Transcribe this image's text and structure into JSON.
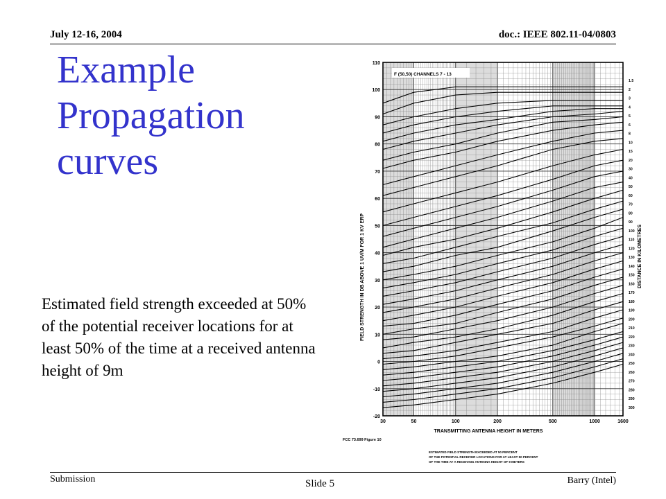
{
  "header": {
    "date": "July 12-16, 2004",
    "doc_id": "doc.: IEEE 802.11-04/0803"
  },
  "title": {
    "lines": [
      "Example",
      "Propagation",
      "curves"
    ],
    "color": "#3333cc"
  },
  "body": {
    "text": "Estimated field strength exceeded at 50% of the potential receiver locations for at least 50% of the time at a received antenna height of 9m"
  },
  "footer": {
    "left": "Submission",
    "center": "Slide 5",
    "right": "Barry (Intel)"
  },
  "figure": {
    "inset_label": "F (50,50) CHANNELS 7 - 13",
    "source_label": "FCC  73.699 Figure 10",
    "caption_lines": [
      "ESTIMATED FIELD STRENGTH EXCEEDED AT 50 PERCENT",
      "OF THE POTENTIAL RECEIVER LOCATIONS FOR AT LEAST 50 PERCENT",
      "OF THE TIME AT A RECEIVING ANTENNA HEIGHT OF 9 METERS"
    ]
  },
  "chart_data": {
    "type": "line",
    "title": "F (50,50) CHANNELS 7 - 13",
    "xlabel": "TRANSMITTING ANTENNA HEIGHT IN METERS",
    "ylabel": "FIELD STRENGTH IN DB ABOVE 1 UV/M FOR 1 KV ERP",
    "y2label": "DISTANCE IN KILOMETRES",
    "x_scale": "log",
    "xlim": [
      30,
      1600
    ],
    "ylim": [
      -20,
      110
    ],
    "x_ticks": [
      30,
      50,
      100,
      200,
      500,
      1000,
      1600
    ],
    "y_ticks": [
      110,
      100,
      90,
      80,
      70,
      60,
      50,
      40,
      30,
      20,
      10,
      0,
      -10,
      -20
    ],
    "grid": true,
    "distance_labels": [
      "1.5",
      "2",
      "3",
      "4",
      "5",
      "6",
      "8",
      "10",
      "15",
      "20",
      "30",
      "40",
      "50",
      "60",
      "70",
      "80",
      "90",
      "100",
      "110",
      "120",
      "130",
      "140",
      "150",
      "160",
      "170",
      "180",
      "190",
      "200",
      "210",
      "220",
      "230",
      "240",
      "250",
      "260",
      "270",
      "280",
      "290",
      "300"
    ],
    "series": [
      {
        "name": "1.5",
        "values": [
          [
            30,
            95
          ],
          [
            50,
            99
          ],
          [
            100,
            101
          ],
          [
            200,
            101
          ],
          [
            500,
            101
          ],
          [
            1000,
            101
          ],
          [
            1600,
            101
          ]
        ]
      },
      {
        "name": "2",
        "values": [
          [
            30,
            91
          ],
          [
            50,
            95
          ],
          [
            100,
            98
          ],
          [
            200,
            99
          ],
          [
            500,
            99
          ],
          [
            1000,
            99
          ],
          [
            1600,
            99
          ]
        ]
      },
      {
        "name": "3",
        "values": [
          [
            30,
            87
          ],
          [
            50,
            90
          ],
          [
            100,
            93
          ],
          [
            200,
            95
          ],
          [
            500,
            96
          ],
          [
            1000,
            96
          ],
          [
            1600,
            96
          ]
        ]
      },
      {
        "name": "4",
        "values": [
          [
            30,
            84
          ],
          [
            50,
            87
          ],
          [
            100,
            90
          ],
          [
            200,
            92
          ],
          [
            500,
            94
          ],
          [
            1000,
            94
          ],
          [
            1600,
            94
          ]
        ]
      },
      {
        "name": "5",
        "values": [
          [
            30,
            81
          ],
          [
            50,
            84
          ],
          [
            100,
            87
          ],
          [
            200,
            89
          ],
          [
            500,
            92
          ],
          [
            1000,
            93
          ],
          [
            1600,
            93
          ]
        ]
      },
      {
        "name": "6",
        "values": [
          [
            30,
            78
          ],
          [
            50,
            81
          ],
          [
            100,
            84
          ],
          [
            200,
            87
          ],
          [
            500,
            90
          ],
          [
            1000,
            91
          ],
          [
            1600,
            92
          ]
        ]
      },
      {
        "name": "8",
        "values": [
          [
            30,
            74
          ],
          [
            50,
            77
          ],
          [
            100,
            80
          ],
          [
            200,
            84
          ],
          [
            500,
            88
          ],
          [
            1000,
            89
          ],
          [
            1600,
            90
          ]
        ]
      },
      {
        "name": "10",
        "values": [
          [
            30,
            71
          ],
          [
            50,
            74
          ],
          [
            100,
            77
          ],
          [
            200,
            81
          ],
          [
            500,
            85
          ],
          [
            1000,
            87
          ],
          [
            1600,
            88
          ]
        ]
      },
      {
        "name": "15",
        "values": [
          [
            30,
            65
          ],
          [
            50,
            68
          ],
          [
            100,
            72
          ],
          [
            200,
            76
          ],
          [
            500,
            81
          ],
          [
            1000,
            84
          ],
          [
            1600,
            85
          ]
        ]
      },
      {
        "name": "20",
        "values": [
          [
            30,
            61
          ],
          [
            50,
            64
          ],
          [
            100,
            68
          ],
          [
            200,
            72
          ],
          [
            500,
            78
          ],
          [
            1000,
            81
          ],
          [
            1600,
            82
          ]
        ]
      },
      {
        "name": "30",
        "values": [
          [
            30,
            55
          ],
          [
            50,
            58
          ],
          [
            100,
            62
          ],
          [
            200,
            66
          ],
          [
            500,
            72
          ],
          [
            1000,
            76
          ],
          [
            1600,
            78
          ]
        ]
      },
      {
        "name": "40",
        "values": [
          [
            30,
            50
          ],
          [
            50,
            53
          ],
          [
            100,
            57
          ],
          [
            200,
            61
          ],
          [
            500,
            67
          ],
          [
            1000,
            72
          ],
          [
            1600,
            74
          ]
        ]
      },
      {
        "name": "50",
        "values": [
          [
            30,
            46
          ],
          [
            50,
            49
          ],
          [
            100,
            53
          ],
          [
            200,
            57
          ],
          [
            500,
            63
          ],
          [
            1000,
            68
          ],
          [
            1600,
            70
          ]
        ]
      },
      {
        "name": "60",
        "values": [
          [
            30,
            42
          ],
          [
            50,
            45
          ],
          [
            100,
            49
          ],
          [
            200,
            53
          ],
          [
            500,
            59
          ],
          [
            1000,
            64
          ],
          [
            1600,
            66
          ]
        ]
      },
      {
        "name": "70",
        "values": [
          [
            30,
            39
          ],
          [
            50,
            42
          ],
          [
            100,
            45
          ],
          [
            200,
            49
          ],
          [
            500,
            55
          ],
          [
            1000,
            60
          ],
          [
            1600,
            63
          ]
        ]
      },
      {
        "name": "80",
        "values": [
          [
            30,
            36
          ],
          [
            50,
            38
          ],
          [
            100,
            42
          ],
          [
            200,
            46
          ],
          [
            500,
            51
          ],
          [
            1000,
            56
          ],
          [
            1600,
            59
          ]
        ]
      },
      {
        "name": "90",
        "values": [
          [
            30,
            33
          ],
          [
            50,
            35
          ],
          [
            100,
            39
          ],
          [
            200,
            42
          ],
          [
            500,
            48
          ],
          [
            1000,
            53
          ],
          [
            1600,
            56
          ]
        ]
      },
      {
        "name": "100",
        "values": [
          [
            30,
            30
          ],
          [
            50,
            32
          ],
          [
            100,
            35
          ],
          [
            200,
            39
          ],
          [
            500,
            44
          ],
          [
            1000,
            49
          ],
          [
            1600,
            53
          ]
        ]
      },
      {
        "name": "110",
        "values": [
          [
            30,
            27
          ],
          [
            50,
            29
          ],
          [
            100,
            32
          ],
          [
            200,
            36
          ],
          [
            500,
            41
          ],
          [
            1000,
            46
          ],
          [
            1600,
            49
          ]
        ]
      },
      {
        "name": "120",
        "values": [
          [
            30,
            24
          ],
          [
            50,
            26
          ],
          [
            100,
            29
          ],
          [
            200,
            33
          ],
          [
            500,
            38
          ],
          [
            1000,
            43
          ],
          [
            1600,
            46
          ]
        ]
      },
      {
        "name": "130",
        "values": [
          [
            30,
            21
          ],
          [
            50,
            23
          ],
          [
            100,
            26
          ],
          [
            200,
            30
          ],
          [
            500,
            35
          ],
          [
            1000,
            40
          ],
          [
            1600,
            43
          ]
        ]
      },
      {
        "name": "140",
        "values": [
          [
            30,
            18
          ],
          [
            50,
            20
          ],
          [
            100,
            23
          ],
          [
            200,
            27
          ],
          [
            500,
            32
          ],
          [
            1000,
            37
          ],
          [
            1600,
            40
          ]
        ]
      },
      {
        "name": "150",
        "values": [
          [
            30,
            15
          ],
          [
            50,
            17
          ],
          [
            100,
            20
          ],
          [
            200,
            24
          ],
          [
            500,
            29
          ],
          [
            1000,
            34
          ],
          [
            1600,
            37
          ]
        ]
      },
      {
        "name": "160",
        "values": [
          [
            30,
            13
          ],
          [
            50,
            14
          ],
          [
            100,
            17
          ],
          [
            200,
            21
          ],
          [
            500,
            26
          ],
          [
            1000,
            31
          ],
          [
            1600,
            34
          ]
        ]
      },
      {
        "name": "170",
        "values": [
          [
            30,
            10
          ],
          [
            50,
            12
          ],
          [
            100,
            14
          ],
          [
            200,
            18
          ],
          [
            500,
            23
          ],
          [
            1000,
            28
          ],
          [
            1600,
            31
          ]
        ]
      },
      {
        "name": "180",
        "values": [
          [
            30,
            8
          ],
          [
            50,
            9
          ],
          [
            100,
            12
          ],
          [
            200,
            15
          ],
          [
            500,
            20
          ],
          [
            1000,
            25
          ],
          [
            1600,
            28
          ]
        ]
      },
      {
        "name": "190",
        "values": [
          [
            30,
            5
          ],
          [
            50,
            7
          ],
          [
            100,
            9
          ],
          [
            200,
            12
          ],
          [
            500,
            17
          ],
          [
            1000,
            22
          ],
          [
            1600,
            25
          ]
        ]
      },
      {
        "name": "200",
        "values": [
          [
            30,
            3
          ],
          [
            50,
            4
          ],
          [
            100,
            7
          ],
          [
            200,
            10
          ],
          [
            500,
            14
          ],
          [
            1000,
            19
          ],
          [
            1600,
            22
          ]
        ]
      },
      {
        "name": "210",
        "values": [
          [
            30,
            1
          ],
          [
            50,
            2
          ],
          [
            100,
            4
          ],
          [
            200,
            7
          ],
          [
            500,
            11
          ],
          [
            1000,
            16
          ],
          [
            1600,
            19
          ]
        ]
      },
      {
        "name": "220",
        "values": [
          [
            30,
            -1
          ],
          [
            50,
            0
          ],
          [
            100,
            2
          ],
          [
            200,
            5
          ],
          [
            500,
            9
          ],
          [
            1000,
            13
          ],
          [
            1600,
            16
          ]
        ]
      },
      {
        "name": "230",
        "values": [
          [
            30,
            -3
          ],
          [
            50,
            -2
          ],
          [
            100,
            0
          ],
          [
            200,
            2
          ],
          [
            500,
            6
          ],
          [
            1000,
            11
          ],
          [
            1600,
            14
          ]
        ]
      },
      {
        "name": "240",
        "values": [
          [
            30,
            -5
          ],
          [
            50,
            -4
          ],
          [
            100,
            -2
          ],
          [
            200,
            0
          ],
          [
            500,
            4
          ],
          [
            1000,
            8
          ],
          [
            1600,
            11
          ]
        ]
      },
      {
        "name": "250",
        "values": [
          [
            30,
            -7
          ],
          [
            50,
            -6
          ],
          [
            100,
            -4
          ],
          [
            200,
            -2
          ],
          [
            500,
            2
          ],
          [
            1000,
            6
          ],
          [
            1600,
            9
          ]
        ]
      },
      {
        "name": "260",
        "values": [
          [
            30,
            -9
          ],
          [
            50,
            -8
          ],
          [
            100,
            -6
          ],
          [
            200,
            -4
          ],
          [
            500,
            0
          ],
          [
            1000,
            4
          ],
          [
            1600,
            7
          ]
        ]
      },
      {
        "name": "270",
        "values": [
          [
            30,
            -11
          ],
          [
            50,
            -10
          ],
          [
            100,
            -8
          ],
          [
            200,
            -6
          ],
          [
            500,
            -2
          ],
          [
            1000,
            2
          ],
          [
            1600,
            5
          ]
        ]
      },
      {
        "name": "280",
        "values": [
          [
            30,
            -13
          ],
          [
            50,
            -12
          ],
          [
            100,
            -10
          ],
          [
            200,
            -8
          ],
          [
            500,
            -4
          ],
          [
            1000,
            0
          ],
          [
            1600,
            3
          ]
        ]
      },
      {
        "name": "290",
        "values": [
          [
            30,
            -15
          ],
          [
            50,
            -14
          ],
          [
            100,
            -12
          ],
          [
            200,
            -10
          ],
          [
            500,
            -6
          ],
          [
            1000,
            -2
          ],
          [
            1600,
            1
          ]
        ]
      },
      {
        "name": "300",
        "values": [
          [
            30,
            -17
          ],
          [
            50,
            -16
          ],
          [
            100,
            -14
          ],
          [
            200,
            -12
          ],
          [
            500,
            -8
          ],
          [
            1000,
            -4
          ],
          [
            1600,
            -1
          ]
        ]
      }
    ]
  }
}
